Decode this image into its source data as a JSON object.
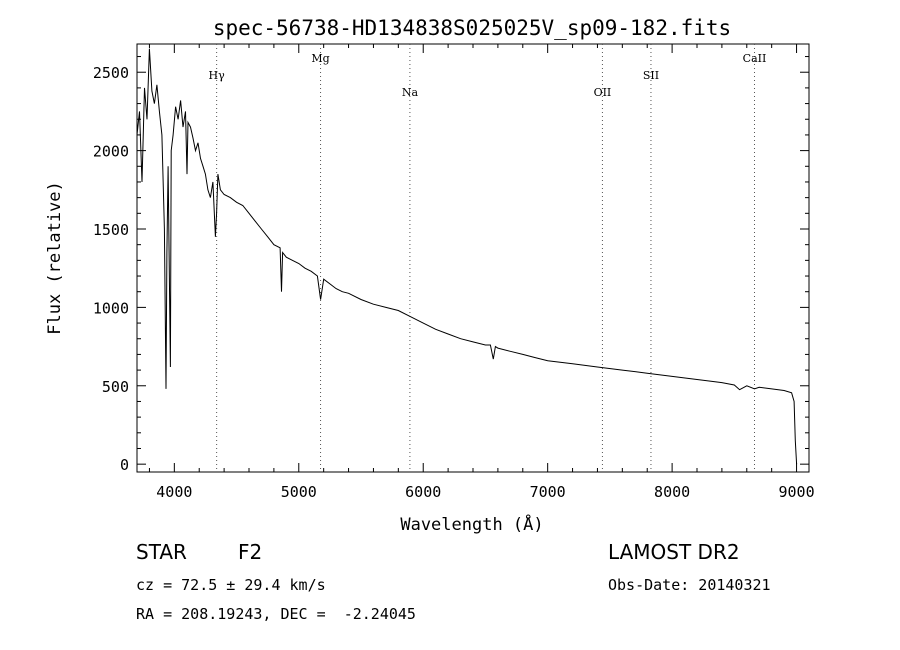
{
  "chart_data": {
    "type": "line",
    "title": "spec-56738-HD134838S025025V_sp09-182.fits",
    "xlabel": "Wavelength (Å)",
    "ylabel": "Flux (relative)",
    "xlim": [
      3700,
      9100
    ],
    "ylim": [
      -50,
      2680
    ],
    "xticks": [
      4000,
      5000,
      6000,
      7000,
      8000,
      9000
    ],
    "yticks": [
      0,
      500,
      1000,
      1500,
      2000,
      2500
    ],
    "grid": false,
    "line_color": "#000000",
    "series": [
      {
        "x": [
          3700,
          3720,
          3740,
          3760,
          3780,
          3800,
          3820,
          3840,
          3860,
          3880,
          3900,
          3920,
          3933,
          3940,
          3950,
          3968,
          3975,
          3990,
          4010,
          4030,
          4050,
          4070,
          4090,
          4102,
          4110,
          4130,
          4150,
          4170,
          4190,
          4210,
          4230,
          4250,
          4270,
          4290,
          4310,
          4330,
          4340,
          4350,
          4370,
          4400,
          4450,
          4500,
          4550,
          4600,
          4650,
          4700,
          4750,
          4800,
          4850,
          4861,
          4870,
          4900,
          4950,
          5000,
          5050,
          5100,
          5150,
          5175,
          5200,
          5250,
          5300,
          5350,
          5400,
          5500,
          5600,
          5700,
          5800,
          5900,
          6000,
          6100,
          6200,
          6300,
          6400,
          6500,
          6540,
          6563,
          6580,
          6600,
          6700,
          6800,
          6900,
          7000,
          7200,
          7400,
          7600,
          7800,
          8000,
          8200,
          8400,
          8500,
          8542,
          8600,
          8662,
          8700,
          8800,
          8900,
          8960,
          8980,
          8990,
          9000
        ],
        "y": [
          2100,
          2250,
          1800,
          2400,
          2200,
          2650,
          2380,
          2300,
          2420,
          2250,
          2100,
          1500,
          480,
          1350,
          1900,
          620,
          2000,
          2100,
          2280,
          2200,
          2320,
          2150,
          2250,
          1850,
          2180,
          2150,
          2080,
          2000,
          2050,
          1950,
          1900,
          1850,
          1750,
          1700,
          1800,
          1450,
          1600,
          1850,
          1750,
          1720,
          1700,
          1670,
          1650,
          1600,
          1550,
          1500,
          1450,
          1400,
          1380,
          1100,
          1350,
          1320,
          1300,
          1280,
          1250,
          1230,
          1200,
          1050,
          1180,
          1150,
          1120,
          1100,
          1090,
          1050,
          1020,
          1000,
          980,
          940,
          900,
          860,
          830,
          800,
          780,
          760,
          760,
          670,
          750,
          740,
          720,
          700,
          680,
          660,
          640,
          620,
          600,
          580,
          560,
          540,
          520,
          505,
          475,
          500,
          480,
          490,
          480,
          470,
          455,
          400,
          150,
          0
        ]
      }
    ],
    "line_markers": [
      {
        "label": "Hγ",
        "x": 4340,
        "label_row": 2
      },
      {
        "label": "Mg",
        "x": 5175,
        "label_row": 1
      },
      {
        "label": "Na",
        "x": 5893,
        "label_row": 3
      },
      {
        "label": "OII",
        "x": 7440,
        "label_row": 3
      },
      {
        "label": "SII",
        "x": 7830,
        "label_row": 2
      },
      {
        "label": "CaII",
        "x": 8662,
        "label_row": 1
      }
    ]
  },
  "info": {
    "object_class": "STAR",
    "subclass": "F2",
    "survey": "LAMOST DR2",
    "cz": "cz = 72.5 ± 29.4 km/s",
    "obs_date": "Obs-Date: 20140321",
    "coords": "RA = 208.19243, DEC =  -2.24045"
  }
}
